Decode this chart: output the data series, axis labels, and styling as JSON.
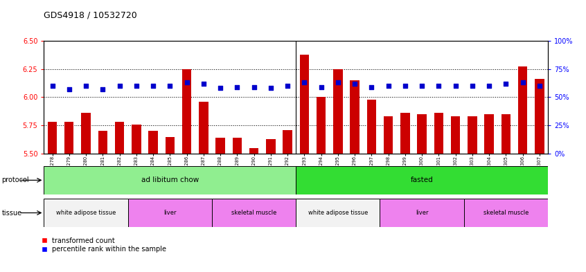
{
  "title": "GDS4918 / 10532720",
  "samples": [
    "GSM1131278",
    "GSM1131279",
    "GSM1131280",
    "GSM1131281",
    "GSM1131282",
    "GSM1131283",
    "GSM1131284",
    "GSM1131285",
    "GSM1131286",
    "GSM1131287",
    "GSM1131288",
    "GSM1131289",
    "GSM1131290",
    "GSM1131291",
    "GSM1131292",
    "GSM1131293",
    "GSM1131294",
    "GSM1131295",
    "GSM1131296",
    "GSM1131297",
    "GSM1131298",
    "GSM1131299",
    "GSM1131300",
    "GSM1131301",
    "GSM1131302",
    "GSM1131303",
    "GSM1131304",
    "GSM1131305",
    "GSM1131306",
    "GSM1131307"
  ],
  "red_values": [
    5.78,
    5.78,
    5.86,
    5.7,
    5.78,
    5.76,
    5.7,
    5.65,
    6.25,
    5.96,
    5.64,
    5.64,
    5.55,
    5.63,
    5.71,
    6.38,
    6.0,
    6.25,
    6.15,
    5.98,
    5.83,
    5.86,
    5.85,
    5.86,
    5.83,
    5.83,
    5.85,
    5.85,
    6.27,
    6.16
  ],
  "blue_values": [
    60,
    57,
    60,
    57,
    60,
    60,
    60,
    60,
    63,
    62,
    58,
    59,
    59,
    58,
    60,
    63,
    59,
    63,
    62,
    59,
    60,
    60,
    60,
    60,
    60,
    60,
    60,
    62,
    63,
    60
  ],
  "protocol_groups": [
    {
      "label": "ad libitum chow",
      "start": 0,
      "end": 14,
      "color": "#90EE90"
    },
    {
      "label": "fasted",
      "start": 15,
      "end": 29,
      "color": "#33DD33"
    }
  ],
  "tissue_groups": [
    {
      "label": "white adipose tissue",
      "start": 0,
      "end": 4,
      "color": "#F2F2F2"
    },
    {
      "label": "liver",
      "start": 5,
      "end": 9,
      "color": "#EE82EE"
    },
    {
      "label": "skeletal muscle",
      "start": 10,
      "end": 14,
      "color": "#EE82EE"
    },
    {
      "label": "white adipose tissue",
      "start": 15,
      "end": 19,
      "color": "#F2F2F2"
    },
    {
      "label": "liver",
      "start": 20,
      "end": 24,
      "color": "#EE82EE"
    },
    {
      "label": "skeletal muscle",
      "start": 25,
      "end": 29,
      "color": "#EE82EE"
    }
  ],
  "ylim_left": [
    5.5,
    6.5
  ],
  "ylim_right": [
    0,
    100
  ],
  "yticks_left": [
    5.5,
    5.75,
    6.0,
    6.25,
    6.5
  ],
  "yticks_right": [
    0,
    25,
    50,
    75,
    100
  ],
  "ytick_right_labels": [
    "0%",
    "25%",
    "50%",
    "75%",
    "100%"
  ],
  "hlines": [
    5.75,
    6.0,
    6.25
  ],
  "bar_color": "#CC0000",
  "dot_color": "#0000CC",
  "bar_bottom": 5.5,
  "legend_red": "transformed count",
  "legend_blue": "percentile rank within the sample",
  "n_samples": 30
}
